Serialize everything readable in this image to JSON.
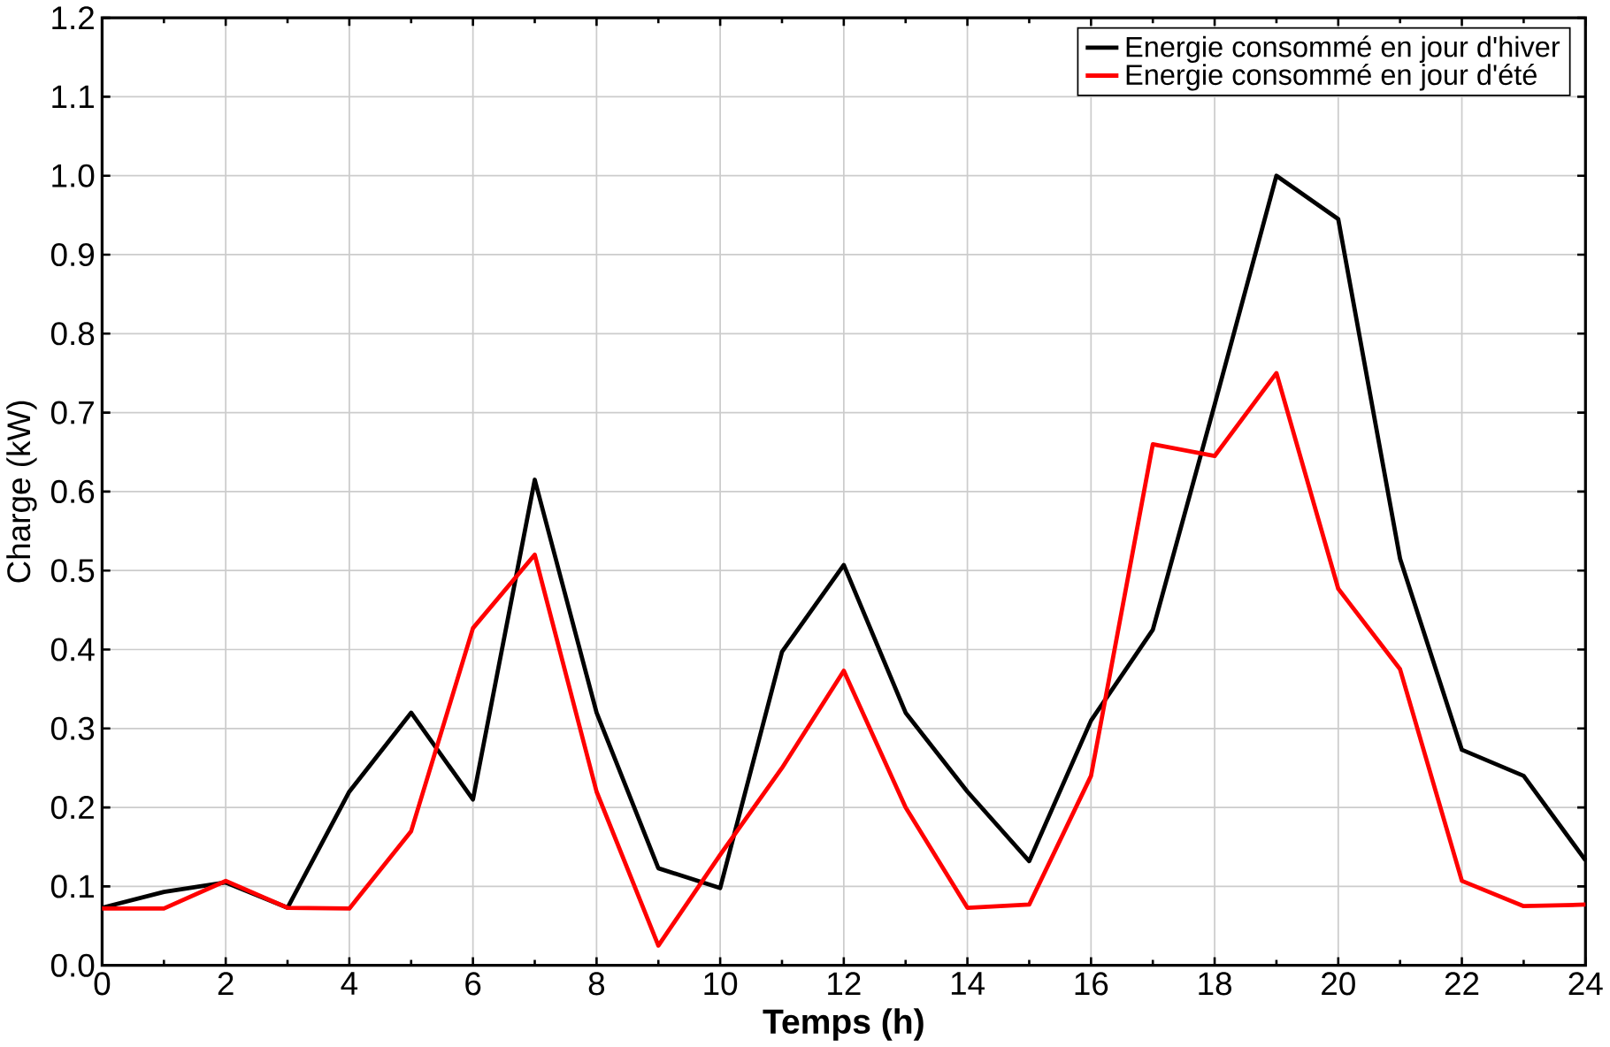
{
  "chart_data": {
    "type": "line",
    "xlabel": "Temps (h)",
    "ylabel": "Charge (kW)",
    "x": [
      0,
      1,
      2,
      3,
      4,
      5,
      6,
      7,
      8,
      9,
      10,
      11,
      12,
      13,
      14,
      15,
      16,
      17,
      18,
      19,
      20,
      21,
      22,
      23,
      24
    ],
    "series": [
      {
        "name": "Energie consommé en jour d'hiver",
        "color": "#000000",
        "values": [
          0.073,
          0.093,
          0.105,
          0.073,
          0.22,
          0.32,
          0.21,
          0.615,
          0.32,
          0.123,
          0.098,
          0.397,
          0.507,
          0.32,
          0.22,
          0.132,
          0.31,
          0.425,
          0.71,
          1.0,
          0.945,
          0.515,
          0.273,
          0.24,
          0.133
        ]
      },
      {
        "name": "Energie consommé en jour d'été",
        "color": "#ff0000",
        "values": [
          0.072,
          0.072,
          0.107,
          0.073,
          0.072,
          0.17,
          0.427,
          0.52,
          0.22,
          0.025,
          0.14,
          0.25,
          0.373,
          0.2,
          0.073,
          0.077,
          0.24,
          0.66,
          0.645,
          0.75,
          0.477,
          0.375,
          0.107,
          0.075,
          0.077
        ]
      }
    ],
    "xlim": [
      0,
      24
    ],
    "xticks": [
      0,
      2,
      4,
      6,
      8,
      10,
      12,
      14,
      16,
      18,
      20,
      22,
      24
    ],
    "ylim": [
      0,
      1.2
    ],
    "yticks": [
      {
        "value": 0,
        "label": "0.0"
      },
      {
        "value": 0.1,
        "label": "0.1"
      },
      {
        "value": 0.2,
        "label": "0.2"
      },
      {
        "value": 0.3,
        "label": "0.3"
      },
      {
        "value": 0.4,
        "label": "0.4"
      },
      {
        "value": 0.5,
        "label": "0.5"
      },
      {
        "value": 0.6,
        "label": "0.6"
      },
      {
        "value": 0.7,
        "label": "0.7"
      },
      {
        "value": 0.8,
        "label": "0.8"
      },
      {
        "value": 0.9,
        "label": "0.9"
      },
      {
        "value": 1.0,
        "label": "1.0"
      },
      {
        "value": 1.1,
        "label": "1.1"
      },
      {
        "value": 1.2,
        "label": "1.2"
      }
    ],
    "grid": true,
    "legend": "top right",
    "marker": "none",
    "line_style": "solid"
  }
}
